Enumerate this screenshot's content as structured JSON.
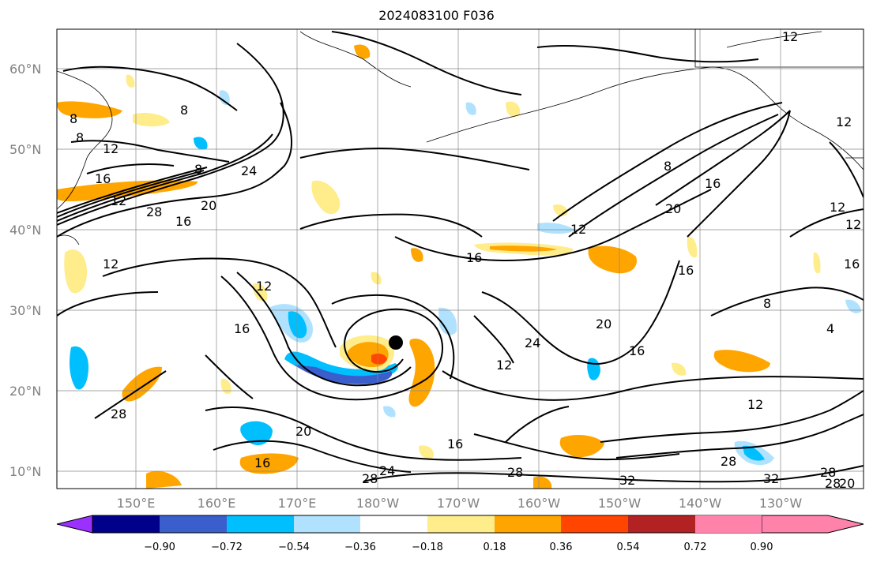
{
  "title": "2024083100 F036",
  "lat_labels": [
    "60°N",
    "50°N",
    "40°N",
    "30°N",
    "20°N",
    "10°N"
  ],
  "lon_labels": [
    "150°E",
    "160°E",
    "170°E",
    "180°W",
    "170°W",
    "160°W",
    "150°W",
    "140°W",
    "130°W"
  ],
  "colorbar": {
    "colors": [
      "#9b30ff",
      "#00008b",
      "#3a5fcd",
      "#00bfff",
      "#b0e2ff",
      "#ffffff",
      "#ffec8b",
      "#ffa500",
      "#ff4500",
      "#b22222",
      "#ff82ab"
    ],
    "tick_labels": [
      "−0.90",
      "−0.72",
      "−0.54",
      "−0.36",
      "−0.18",
      "0.18",
      "0.36",
      "0.54",
      "0.72",
      "0.90"
    ]
  },
  "contour_labels": [
    "12",
    "8",
    "8",
    "12",
    "16",
    "8",
    "8",
    "24",
    "12",
    "28",
    "16",
    "20",
    "12",
    "16",
    "12",
    "16",
    "24",
    "20",
    "16",
    "12",
    "12",
    "16",
    "8",
    "20",
    "16",
    "12",
    "12",
    "12",
    "16",
    "8",
    "4",
    "28",
    "20",
    "16",
    "28",
    "24",
    "28",
    "16",
    "28",
    "32",
    "12",
    "28",
    "32",
    "28",
    "20"
  ],
  "storm_marker": "storm-center"
}
